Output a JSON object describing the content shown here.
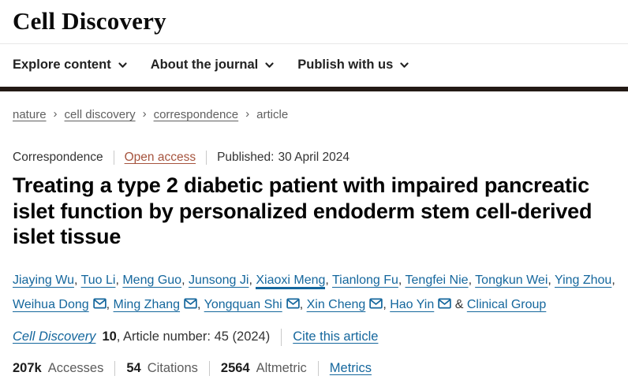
{
  "brand": {
    "logo": "Cell Discovery"
  },
  "nav": {
    "items": [
      {
        "label": "Explore content"
      },
      {
        "label": "About the journal"
      },
      {
        "label": "Publish with us"
      }
    ]
  },
  "breadcrumb": {
    "separator": "›",
    "items": [
      {
        "label": "nature",
        "link": true
      },
      {
        "label": "cell discovery",
        "link": true
      },
      {
        "label": "correspondence",
        "link": true
      },
      {
        "label": "article",
        "link": false
      }
    ]
  },
  "article": {
    "type": "Correspondence",
    "access": "Open access",
    "published_label": "Published:",
    "published_date": "30 April 2024",
    "title": "Treating a type 2 diabetic patient with impaired pancreatic islet function by personalized endoderm stem cell-derived islet tissue"
  },
  "authors": {
    "separator": ", ",
    "ampersand": "&",
    "group": "Clinical Group",
    "list": [
      {
        "name": "Jiaying Wu"
      },
      {
        "name": "Tuo Li"
      },
      {
        "name": "Meng Guo"
      },
      {
        "name": "Junsong Ji"
      },
      {
        "name": "Xiaoxi Meng",
        "highlight": true
      },
      {
        "name": "Tianlong Fu"
      },
      {
        "name": "Tengfei Nie"
      },
      {
        "name": "Tongkun Wei"
      },
      {
        "name": "Ying Zhou"
      },
      {
        "name": "Weihua Dong",
        "email": true
      },
      {
        "name": "Ming Zhang",
        "email": true
      },
      {
        "name": "Yongquan Shi",
        "email": true
      },
      {
        "name": "Xin Cheng",
        "email": true
      },
      {
        "name": "Hao Yin",
        "email": true
      }
    ]
  },
  "citation": {
    "journal": "Cell Discovery",
    "volume": "10",
    "article_info": ", Article number: 45 (2024)",
    "cite_link": "Cite this article"
  },
  "metrics": {
    "items": [
      {
        "value": "207k",
        "label": "Accesses"
      },
      {
        "value": "54",
        "label": "Citations"
      },
      {
        "value": "2564",
        "label": "Altmetric"
      }
    ],
    "link": "Metrics"
  },
  "colors": {
    "link_blue": "#15679d",
    "open_access": "#a6543e",
    "header_bar": "#231a15"
  }
}
